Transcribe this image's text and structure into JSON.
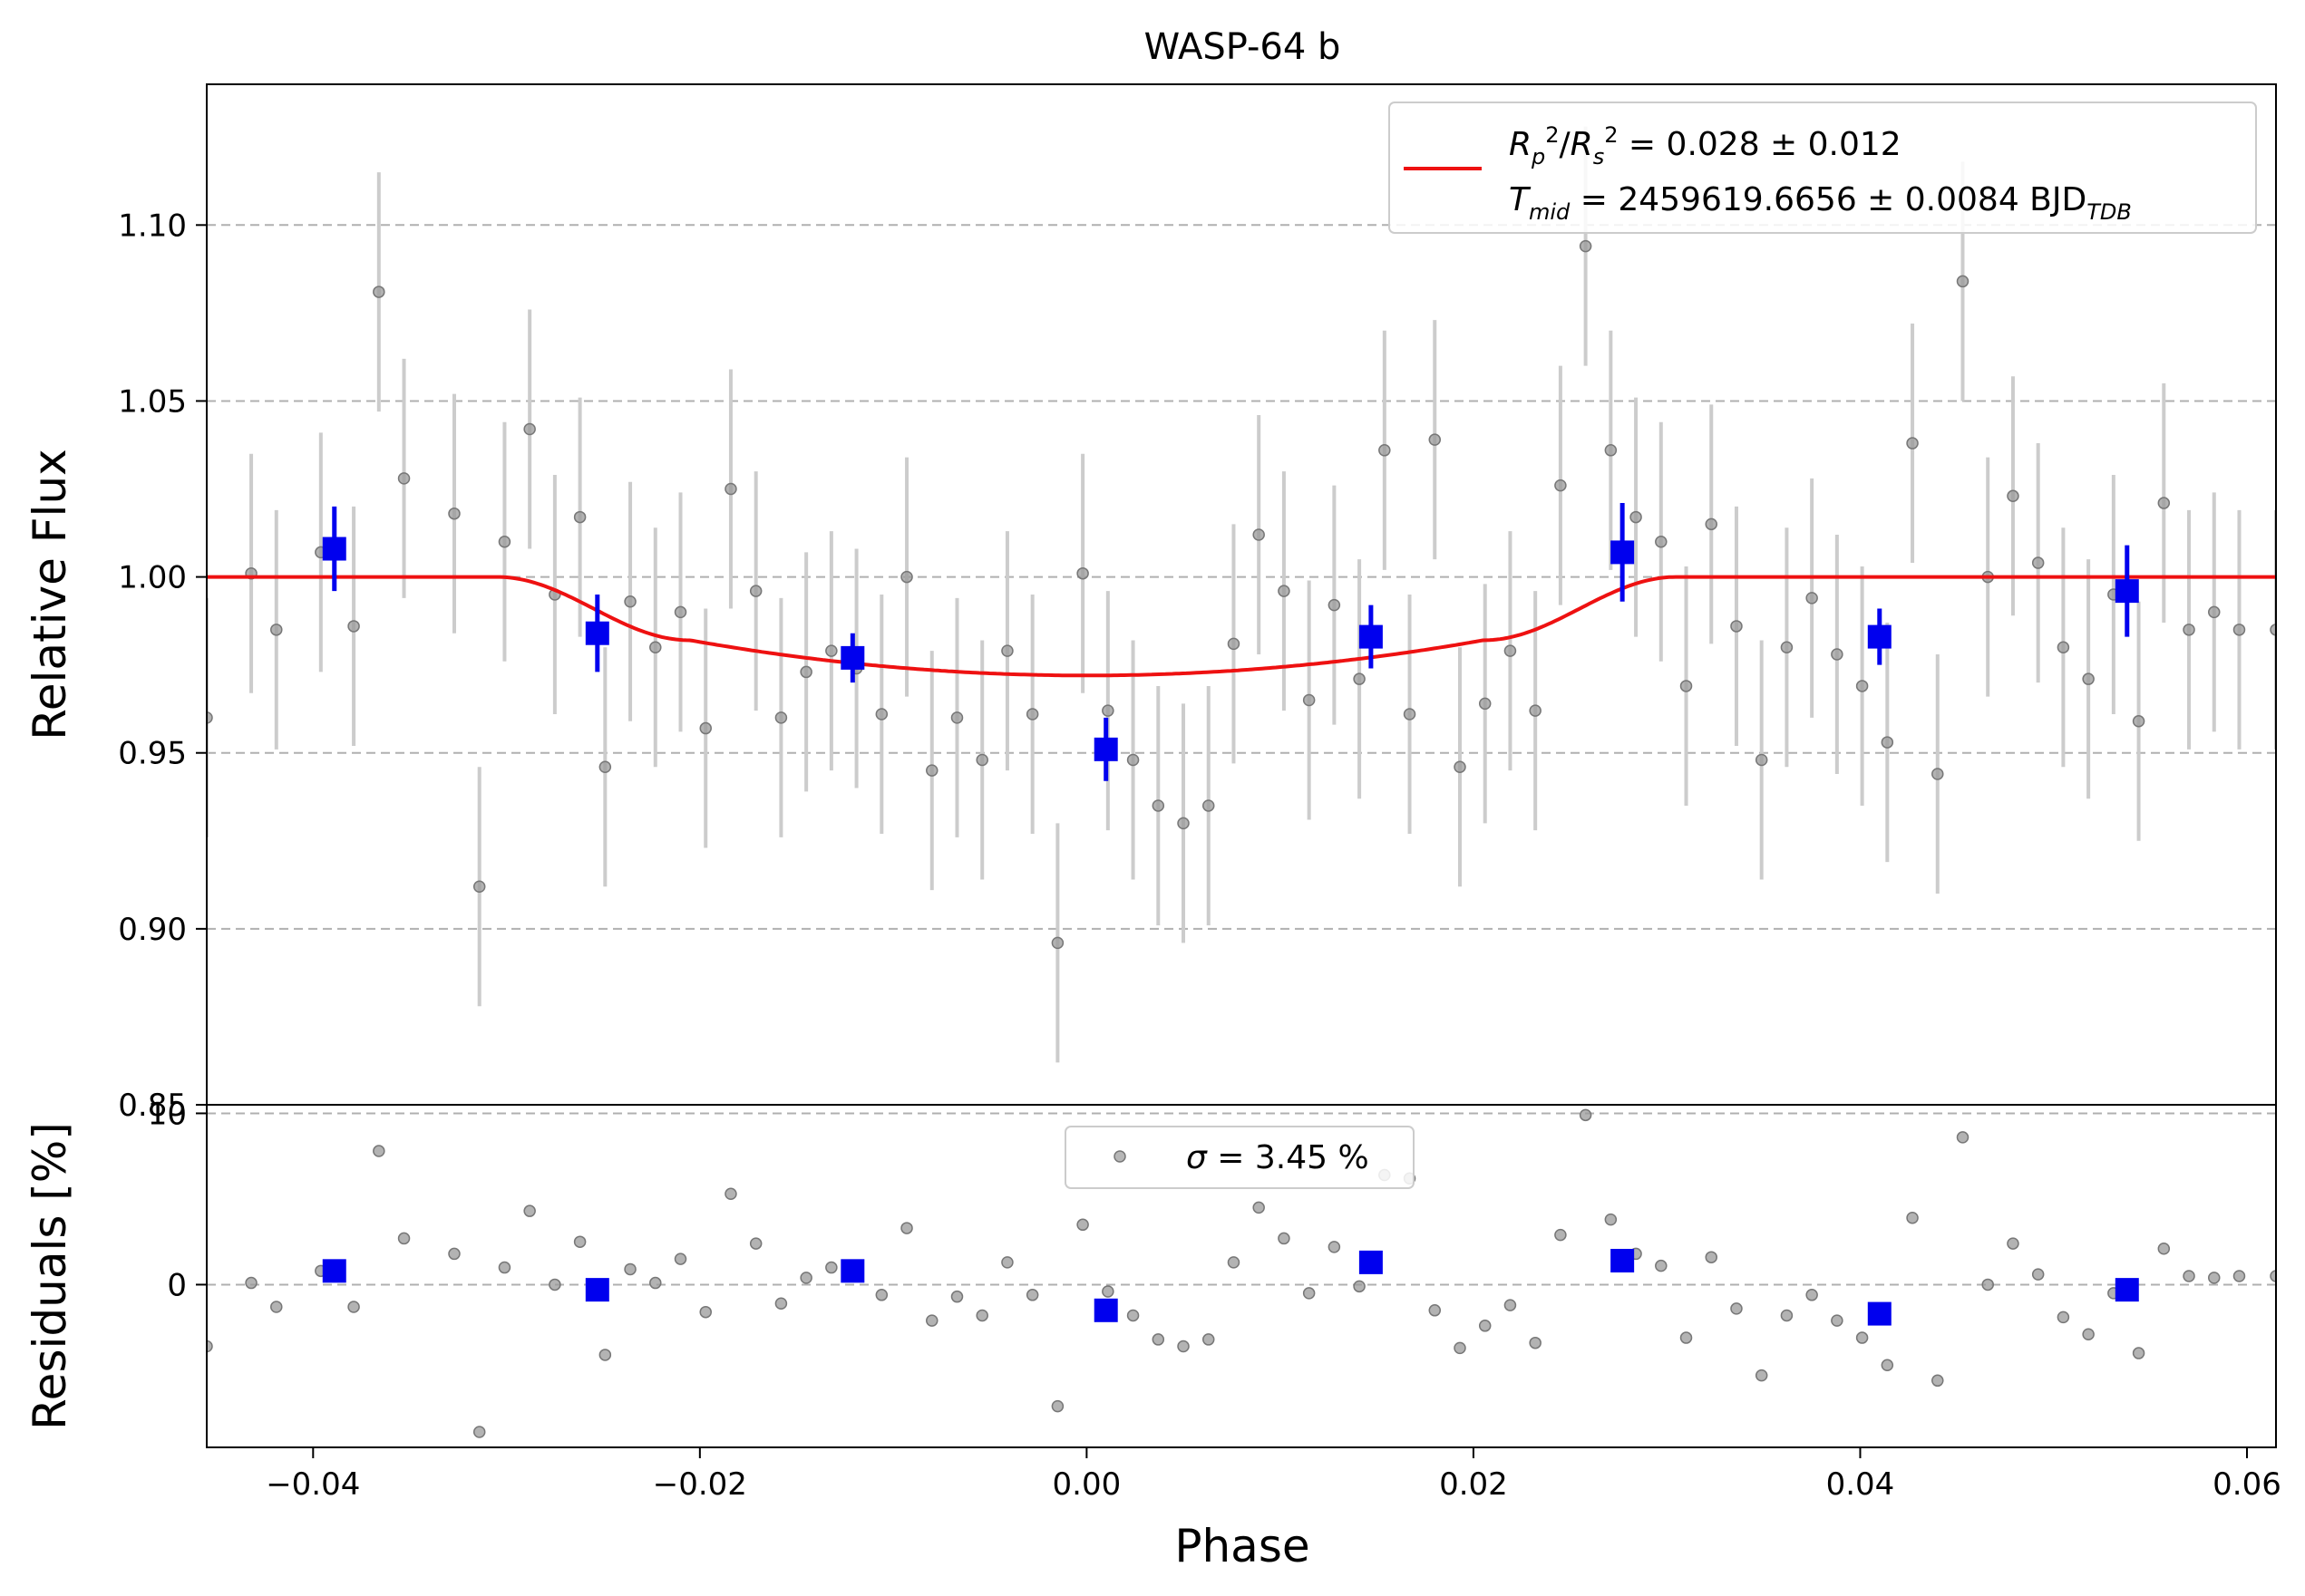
{
  "chart_data": {
    "type": "scatter",
    "title": "WASP-64 b",
    "xlabel": "Phase",
    "xlim": [
      -0.0455,
      0.0615
    ],
    "x_ticks": [
      -0.04,
      -0.02,
      0.0,
      0.02,
      0.04,
      0.06
    ],
    "x_tick_labels": [
      "−0.04",
      "−0.02",
      "0.00",
      "0.02",
      "0.04",
      "0.06"
    ],
    "grid": true,
    "top_panel": {
      "ylabel": "Relative Flux",
      "ylim": [
        0.85,
        1.14
      ],
      "y_ticks": [
        0.85,
        0.9,
        0.95,
        1.0,
        1.05,
        1.1
      ],
      "y_tick_labels": [
        "0.85",
        "0.90",
        "0.95",
        "1.00",
        "1.05",
        "1.10"
      ],
      "legend": {
        "location": "upper right",
        "entries": [
          "R_p^2/R_s^2 = 0.028 ± 0.012",
          "T_mid = 2459619.6656 ± 0.0084 BJD_TDB"
        ],
        "ratio_prefix": "/",
        "ratio_value": " = 0.028 ± 0.012",
        "tmid_value": " = 2459619.6656 ± 0.0084 BJD"
      },
      "model_color": "#ee1111",
      "raw_color": "#999999",
      "binned_color": "#0000ee",
      "model": {
        "baseline": 1.0,
        "depth": 0.028,
        "t_mid": 0.0,
        "ingress_start": -0.0305,
        "ingress_end": -0.0205,
        "egress_start": 0.0205,
        "egress_end": 0.0305
      },
      "raw": {
        "x": [
          -0.0455,
          -0.0432,
          -0.0419,
          -0.0396,
          -0.0379,
          -0.0366,
          -0.0353,
          -0.0327,
          -0.0314,
          -0.0301,
          -0.0288,
          -0.0275,
          -0.0262,
          -0.0249,
          -0.0236,
          -0.0223,
          -0.021,
          -0.0197,
          -0.0184,
          -0.0171,
          -0.0158,
          -0.0145,
          -0.0132,
          -0.0119,
          -0.0106,
          -0.0093,
          -0.008,
          -0.0067,
          -0.0054,
          -0.0041,
          -0.0028,
          -0.0015,
          -0.0002,
          0.0011,
          0.0024,
          0.0037,
          0.005,
          0.0063,
          0.0076,
          0.0089,
          0.0102,
          0.0115,
          0.0128,
          0.0141,
          0.0154,
          0.0167,
          0.018,
          0.0193,
          0.0206,
          0.0219,
          0.0232,
          0.0245,
          0.0258,
          0.0271,
          0.0284,
          0.0297,
          0.031,
          0.0323,
          0.0336,
          0.0349,
          0.0362,
          0.0375,
          0.0388,
          0.0401,
          0.0414,
          0.0427,
          0.044,
          0.0453,
          0.0466,
          0.0479,
          0.0492,
          0.0505,
          0.0518,
          0.0531,
          0.0544,
          0.0557,
          0.057,
          0.0583,
          0.0596,
          0.0615
        ],
        "y": [
          0.96,
          1.001,
          0.985,
          1.007,
          0.986,
          1.081,
          1.028,
          1.018,
          0.912,
          1.01,
          1.042,
          0.995,
          1.017,
          0.946,
          0.993,
          0.98,
          0.99,
          0.957,
          1.025,
          0.996,
          0.96,
          0.973,
          0.979,
          0.974,
          0.961,
          1.0,
          0.945,
          0.96,
          0.948,
          0.979,
          0.961,
          0.896,
          1.001,
          0.962,
          0.948,
          0.935,
          0.93,
          0.935,
          0.981,
          1.012,
          0.996,
          0.965,
          0.992,
          0.971,
          1.036,
          0.961,
          1.039,
          0.946,
          0.964,
          0.979,
          0.962,
          1.026,
          1.094,
          1.036,
          1.017,
          1.01,
          0.969,
          1.015,
          0.986,
          0.948,
          0.98,
          0.994,
          0.978,
          0.969,
          0.953,
          1.038,
          0.944,
          1.084,
          1.0,
          1.023,
          1.004,
          0.98,
          0.971,
          0.995,
          0.959,
          1.021,
          0.985,
          0.99,
          0.985,
          0.985
        ],
        "err": 0.034
      },
      "binned": {
        "x": [
          -0.0389,
          -0.0253,
          -0.0121,
          0.001,
          0.0147,
          0.0277,
          0.041,
          0.0538
        ],
        "y": [
          1.008,
          0.984,
          0.977,
          0.951,
          0.983,
          1.007,
          0.983,
          0.996
        ],
        "err": [
          0.012,
          0.011,
          0.007,
          0.009,
          0.009,
          0.014,
          0.008,
          0.013
        ]
      }
    },
    "bottom_panel": {
      "ylabel": "Residuals [%]",
      "ylim": [
        -9.5,
        10.5
      ],
      "y_ticks": [
        0,
        10
      ],
      "y_tick_labels": [
        "0",
        "10"
      ],
      "legend": {
        "location": "upper center",
        "label": "σ = 3.45 %",
        "sigma_symbol": "σ",
        "sigma_value": " = 3.45 %"
      },
      "raw_residuals": [
        -3.6,
        0.1,
        -1.3,
        0.8,
        -1.3,
        7.8,
        2.7,
        1.8,
        -8.6,
        1.0,
        4.3,
        0.0,
        2.5,
        -4.1,
        0.9,
        0.1,
        1.5,
        -1.6,
        5.3,
        2.4,
        -1.1,
        0.4,
        1.0,
        0.6,
        -0.6,
        3.3,
        -2.1,
        -0.7,
        -1.8,
        1.3,
        -0.6,
        -7.1,
        3.5,
        -0.4,
        -1.8,
        -3.2,
        -3.6,
        -3.2,
        1.3,
        4.5,
        2.7,
        -0.5,
        2.2,
        -0.1,
        6.4,
        6.2,
        -1.5,
        -3.7,
        -2.4,
        -1.2,
        -3.4,
        2.9,
        9.9,
        3.8,
        1.8,
        1.1,
        -3.1,
        1.6,
        -1.4,
        -5.3,
        -1.8,
        -0.6,
        -2.1,
        -3.1,
        -4.7,
        3.9,
        -5.6,
        8.6,
        0.0,
        2.4,
        0.6,
        -1.9,
        -2.9,
        -0.5,
        -4.0,
        2.1,
        0.5,
        0.4,
        0.5,
        0.5
      ],
      "binned_residuals": [
        0.8,
        -0.3,
        0.8,
        -1.5,
        1.3,
        1.4,
        -1.7,
        -0.3
      ]
    }
  }
}
